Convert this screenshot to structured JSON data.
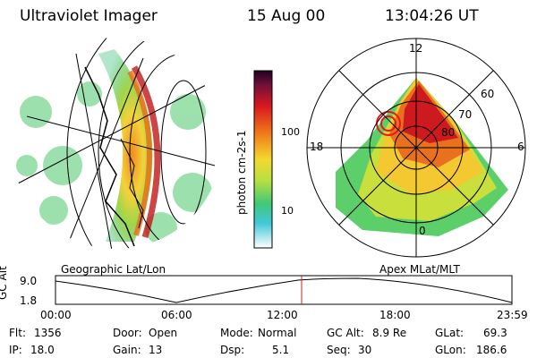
{
  "header": {
    "instrument": "Ultraviolet Imager",
    "date": "15 Aug 00",
    "time": "13:04:26 UT"
  },
  "colorbar": {
    "label": "photon cm-2s-1",
    "ticks": [
      "100",
      "10"
    ]
  },
  "left_panel": {
    "caption": "Geographic Lat/Lon"
  },
  "right_panel": {
    "caption": "Apex MLat/MLT",
    "mlt_labels": [
      "12",
      "18",
      "6",
      "0"
    ],
    "mlat_labels": [
      "60",
      "70",
      "80"
    ]
  },
  "altitude_plot": {
    "ylabel": "GC Alt",
    "yticks": [
      "9.0",
      "1.8"
    ],
    "xticks": [
      "00:00",
      "06:00",
      "12:00",
      "18:00",
      "23:59"
    ],
    "marker_time": "13:04"
  },
  "info": {
    "flt_label": "Flt:",
    "flt_value": "1356",
    "ip_label": "IP:",
    "ip_value": "18.0",
    "door_label": "Door:",
    "door_value": "Open",
    "gain_label": "Gain:",
    "gain_value": "13",
    "mode_label": "Mode:",
    "mode_value": "Normal",
    "dsp_label": "Dsp:",
    "dsp_value": "5.1",
    "gcalt_label": "GC Alt:",
    "gcalt_value": "8.9 Re",
    "seq_label": "Seq:",
    "seq_value": "30",
    "glat_label": "GLat:",
    "glat_value": "69.3",
    "glon_label": "GLon:",
    "glon_value": "186.6"
  }
}
